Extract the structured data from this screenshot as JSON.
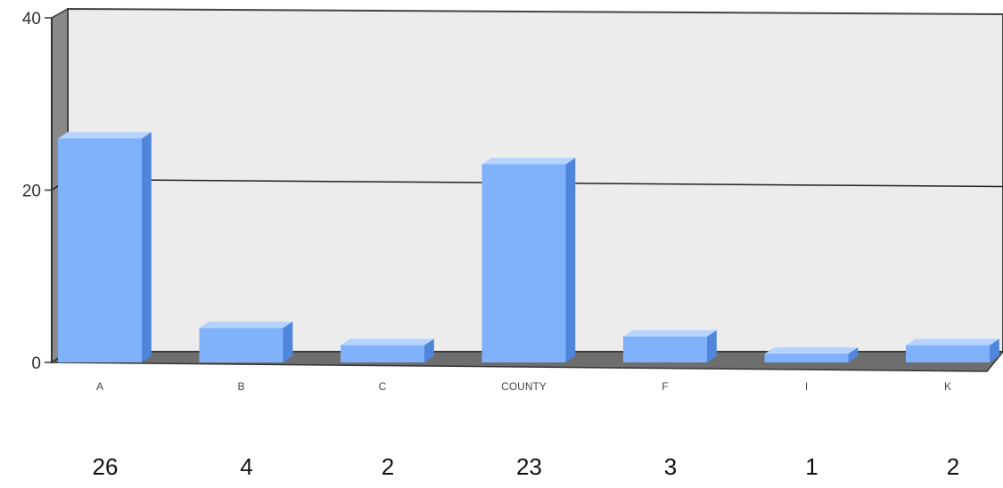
{
  "chart_data": {
    "type": "bar",
    "categories": [
      "A",
      "B",
      "C",
      "COUNTY",
      "F",
      "I",
      "K"
    ],
    "values": [
      26,
      4,
      2,
      23,
      3,
      1,
      2
    ],
    "value_labels": [
      "26",
      "4",
      "2",
      "23",
      "3",
      "1",
      "2"
    ],
    "yticks": [
      "0",
      "20",
      "40"
    ],
    "ylim": [
      0,
      40
    ],
    "grid": true,
    "title": "",
    "xlabel": "",
    "ylabel": "",
    "colors": {
      "bar_front": "#7fb2fb",
      "bar_side": "#4f86dc",
      "bar_top": "#b6d3ff",
      "plot_bg": "#ececec",
      "wall_side": "#8a8a8a",
      "floor": "#6e6e6e"
    }
  }
}
